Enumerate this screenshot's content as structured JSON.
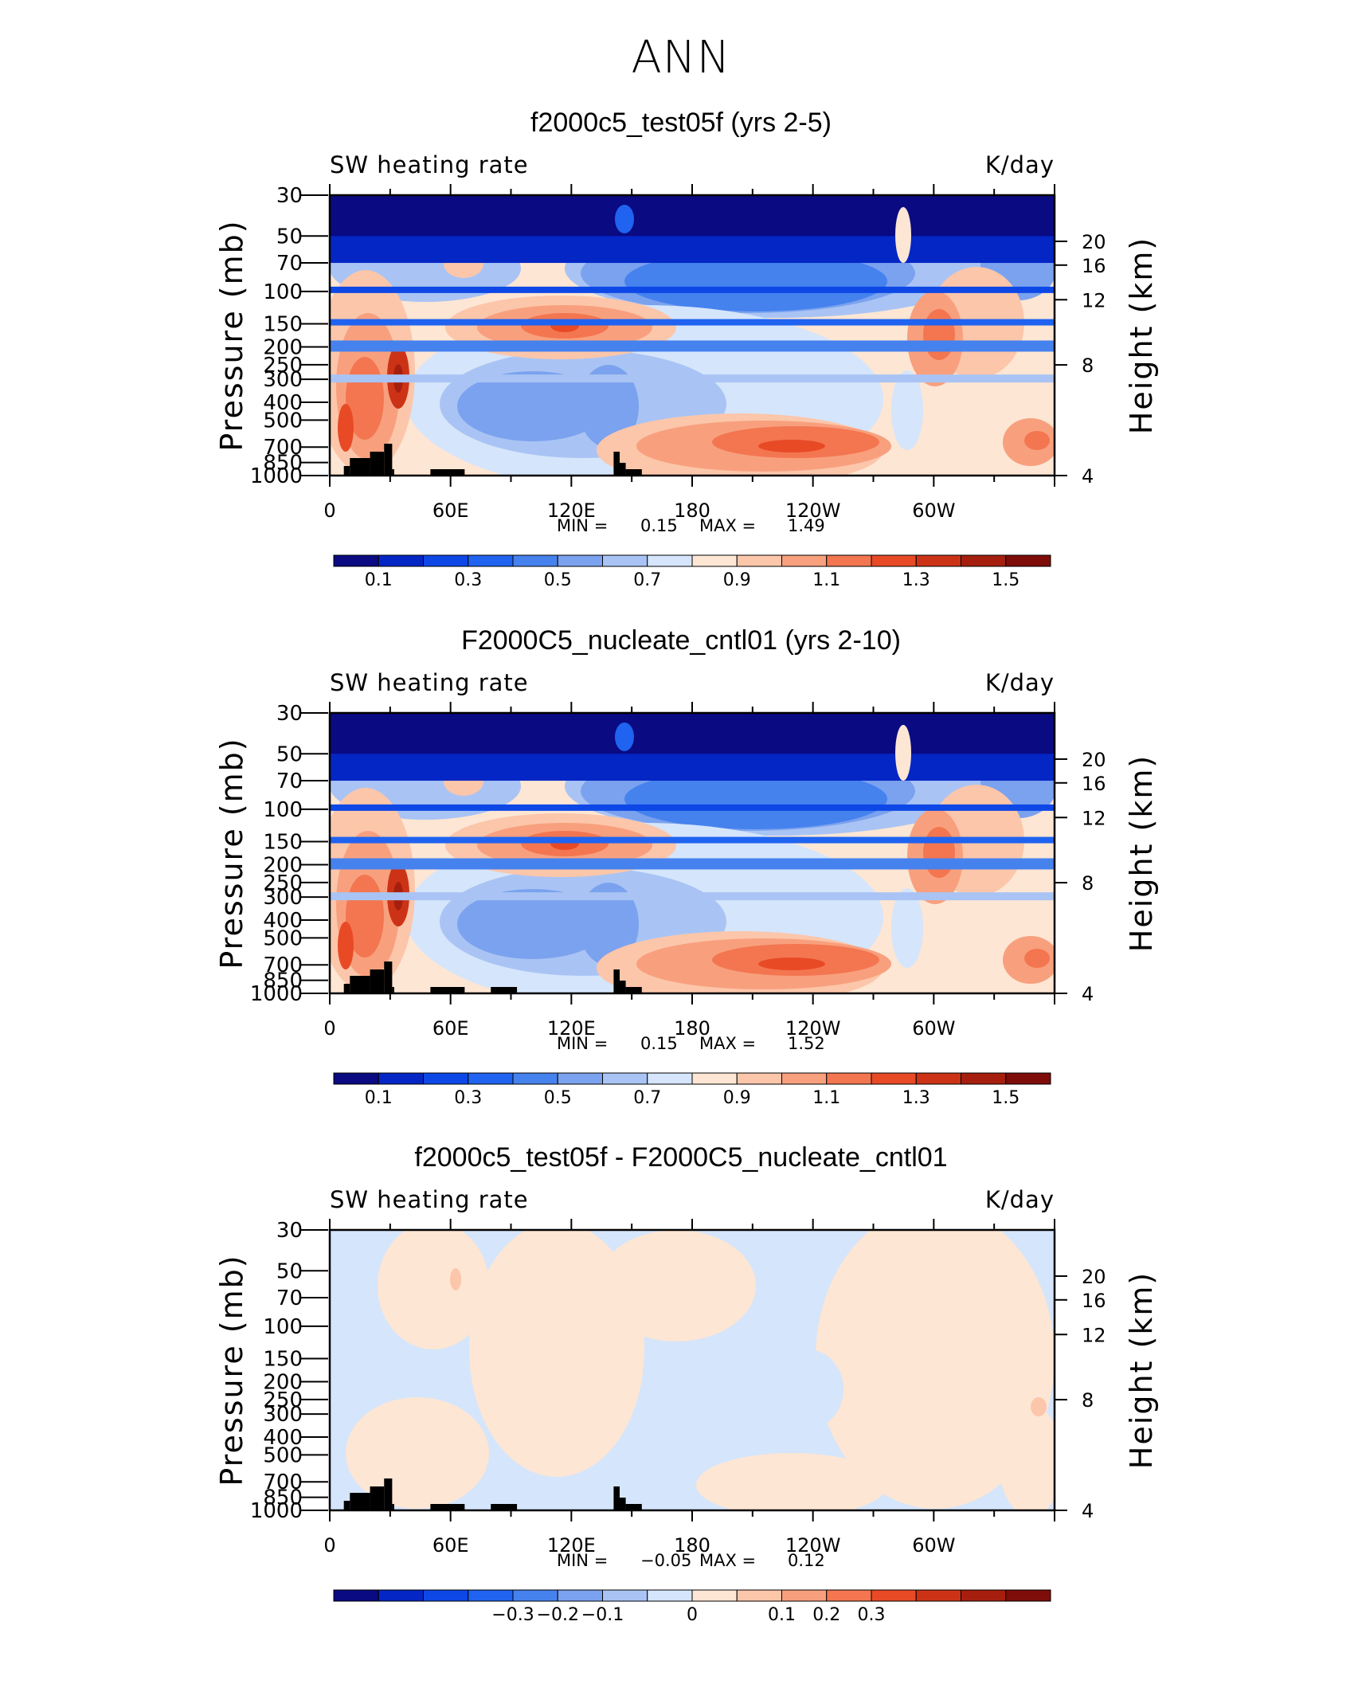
{
  "main_title": "ANN",
  "panels": [
    {
      "title": "f2000c5_test05f (yrs 2-5)",
      "variable": "SW heating rate",
      "units": "K/day",
      "ylabel": "Pressure (mb)",
      "y2label": "Height (km)",
      "min_label": "MIN =",
      "min_value": "0.15",
      "max_label": "MAX =",
      "max_value": "1.49",
      "colorbar_labels": [
        "0.1",
        "0.3",
        "0.5",
        "0.7",
        "0.9",
        "1.1",
        "1.3",
        "1.5"
      ]
    },
    {
      "title": "F2000C5_nucleate_cntl01 (yrs 2-10)",
      "variable": "SW heating rate",
      "units": "K/day",
      "ylabel": "Pressure (mb)",
      "y2label": "Height (km)",
      "min_label": "MIN =",
      "min_value": "0.15",
      "max_label": "MAX =",
      "max_value": "1.52",
      "colorbar_labels": [
        "0.1",
        "0.3",
        "0.5",
        "0.7",
        "0.9",
        "1.1",
        "1.3",
        "1.5"
      ]
    },
    {
      "title": "f2000c5_test05f - F2000C5_nucleate_cntl01",
      "variable": "SW heating rate",
      "units": "K/day",
      "ylabel": "Pressure (mb)",
      "y2label": "Height (km)",
      "min_label": "MIN =",
      "min_value": "−0.05",
      "max_label": "MAX =",
      "max_value": "0.12",
      "colorbar_labels": [
        "−0.3",
        "−0.2",
        "−0.1",
        "0",
        "0.1",
        "0.2",
        "0.3"
      ]
    }
  ],
  "chart_data": [
    {
      "type": "heatmap",
      "title": "f2000c5_test05f (yrs 2-5)",
      "xlabel": "",
      "ylabel": "Pressure (mb)",
      "y2label": "Height (km)",
      "units": "K/day",
      "x_ticks": [
        "0",
        "60E",
        "120E",
        "180",
        "120W",
        "60W"
      ],
      "y_ticks": [
        "30",
        "50",
        "70",
        "100",
        "150",
        "200",
        "250",
        "300",
        "400",
        "500",
        "700",
        "850",
        "1000"
      ],
      "y2_ticks": [
        "20",
        "16",
        "12",
        "8",
        "4"
      ],
      "levels": [
        0.1,
        0.2,
        0.3,
        0.4,
        0.5,
        0.6,
        0.7,
        0.8,
        0.9,
        1.0,
        1.1,
        1.2,
        1.3,
        1.4,
        1.5
      ],
      "min": 0.15,
      "max": 1.49
    },
    {
      "type": "heatmap",
      "title": "F2000C5_nucleate_cntl01 (yrs 2-10)",
      "xlabel": "",
      "ylabel": "Pressure (mb)",
      "y2label": "Height (km)",
      "units": "K/day",
      "x_ticks": [
        "0",
        "60E",
        "120E",
        "180",
        "120W",
        "60W"
      ],
      "y_ticks": [
        "30",
        "50",
        "70",
        "100",
        "150",
        "200",
        "250",
        "300",
        "400",
        "500",
        "700",
        "850",
        "1000"
      ],
      "y2_ticks": [
        "20",
        "16",
        "12",
        "8",
        "4"
      ],
      "levels": [
        0.1,
        0.2,
        0.3,
        0.4,
        0.5,
        0.6,
        0.7,
        0.8,
        0.9,
        1.0,
        1.1,
        1.2,
        1.3,
        1.4,
        1.5
      ],
      "min": 0.15,
      "max": 1.52
    },
    {
      "type": "heatmap",
      "title": "f2000c5_test05f - F2000C5_nucleate_cntl01",
      "xlabel": "",
      "ylabel": "Pressure (mb)",
      "y2label": "Height (km)",
      "units": "K/day",
      "x_ticks": [
        "0",
        "60E",
        "120E",
        "180",
        "120W",
        "60W"
      ],
      "y_ticks": [
        "30",
        "50",
        "70",
        "100",
        "150",
        "200",
        "250",
        "300",
        "400",
        "500",
        "700",
        "850",
        "1000"
      ],
      "y2_ticks": [
        "20",
        "16",
        "12",
        "8",
        "4"
      ],
      "levels": [
        -0.35,
        -0.3,
        -0.25,
        -0.2,
        -0.15,
        -0.1,
        -0.05,
        0,
        0.05,
        0.1,
        0.15,
        0.2,
        0.25,
        0.3,
        0.35
      ],
      "min": -0.05,
      "max": 0.12
    }
  ],
  "colorbar_colors": [
    "#0a0a82",
    "#0426c4",
    "#0d47e6",
    "#1f63f0",
    "#4682ee",
    "#7ba2ee",
    "#a9c4f4",
    "#d5e5fb",
    "#fde6d4",
    "#fcc6aa",
    "#f8a07e",
    "#f37650",
    "#e84a26",
    "#cc3316",
    "#a61f0e",
    "#7e0d0a"
  ]
}
